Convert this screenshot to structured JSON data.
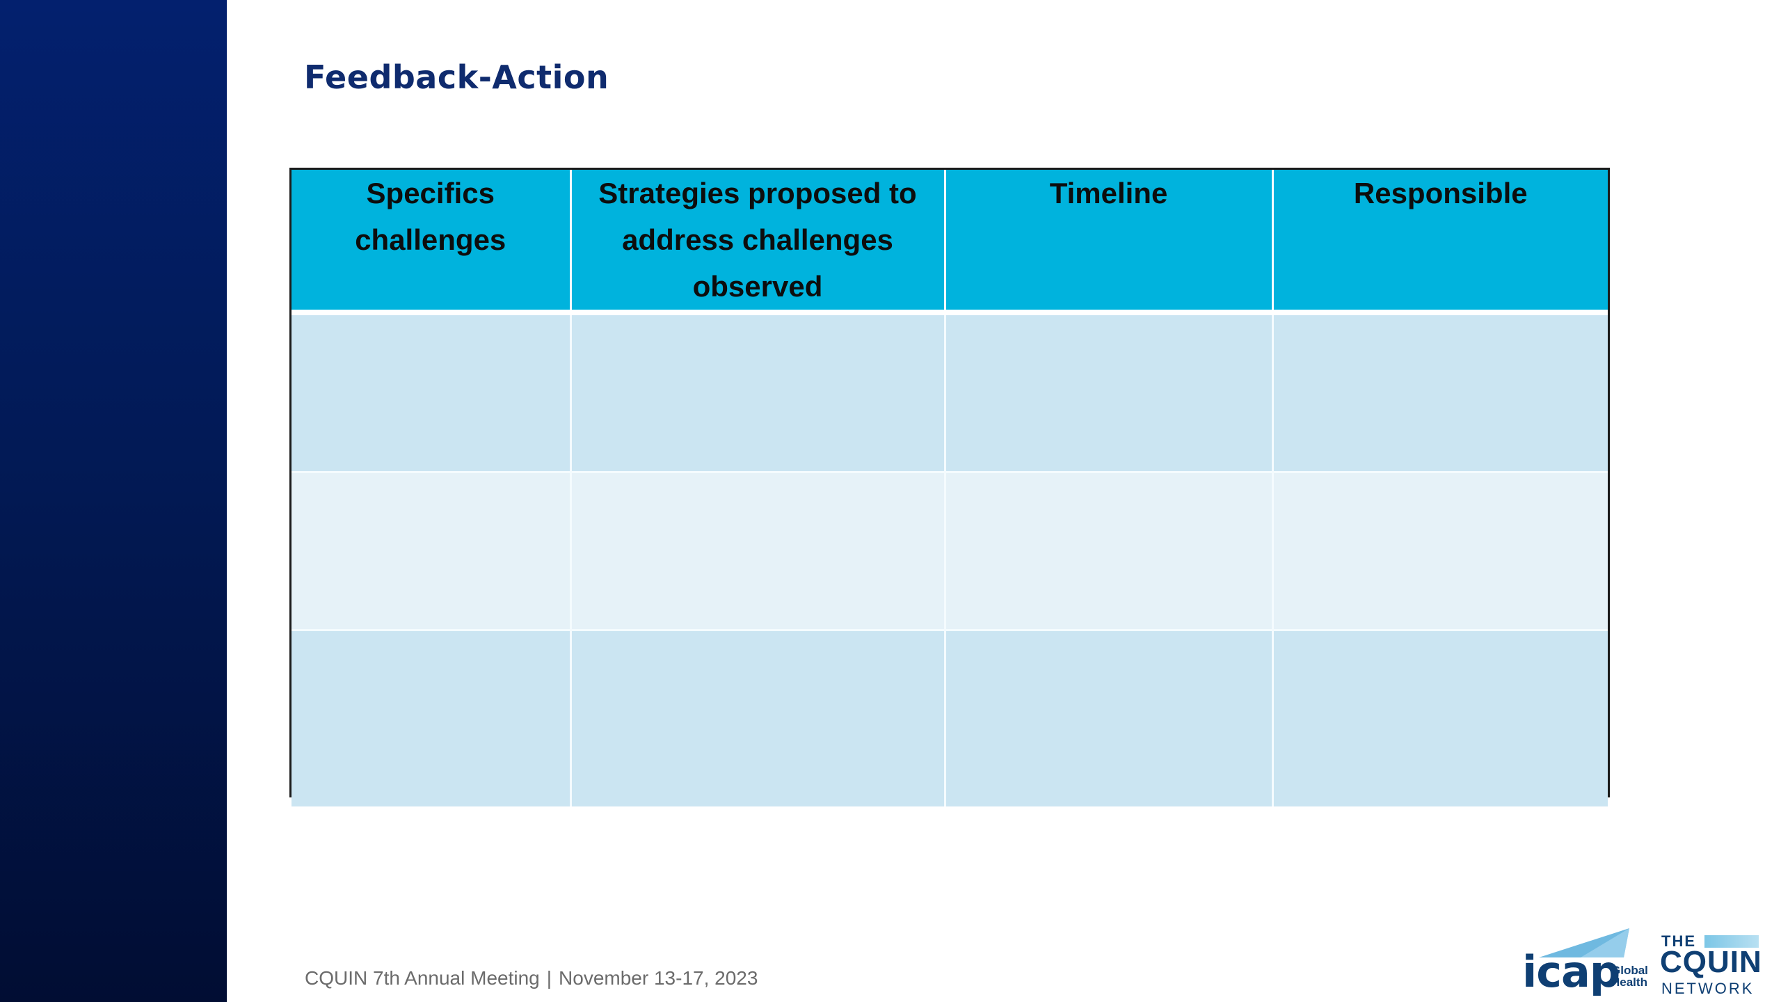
{
  "slide": {
    "title": "Feedback-Action",
    "accent_color": "#021a56",
    "table_header_color": "#00b3dd",
    "row_colors": [
      "#cbe5f2",
      "#e6f2f8"
    ]
  },
  "table": {
    "headers": [
      "Specifics challenges",
      "Strategies proposed to address challenges observed",
      "Timeline",
      "Responsible"
    ],
    "rows": [
      [
        "",
        "",
        "",
        ""
      ],
      [
        "",
        "",
        "",
        ""
      ],
      [
        "",
        "",
        "",
        ""
      ]
    ]
  },
  "footer": {
    "meeting": "CQUIN 7th Annual Meeting",
    "separator": "|",
    "dates": "November 13-17, 2023"
  },
  "logos": {
    "icap": {
      "wordmark": "icap",
      "sub_line1": "Global",
      "sub_line2": "Health"
    },
    "cquin": {
      "the": "THE",
      "name": "CQUIN",
      "network": "NETWORK"
    }
  }
}
